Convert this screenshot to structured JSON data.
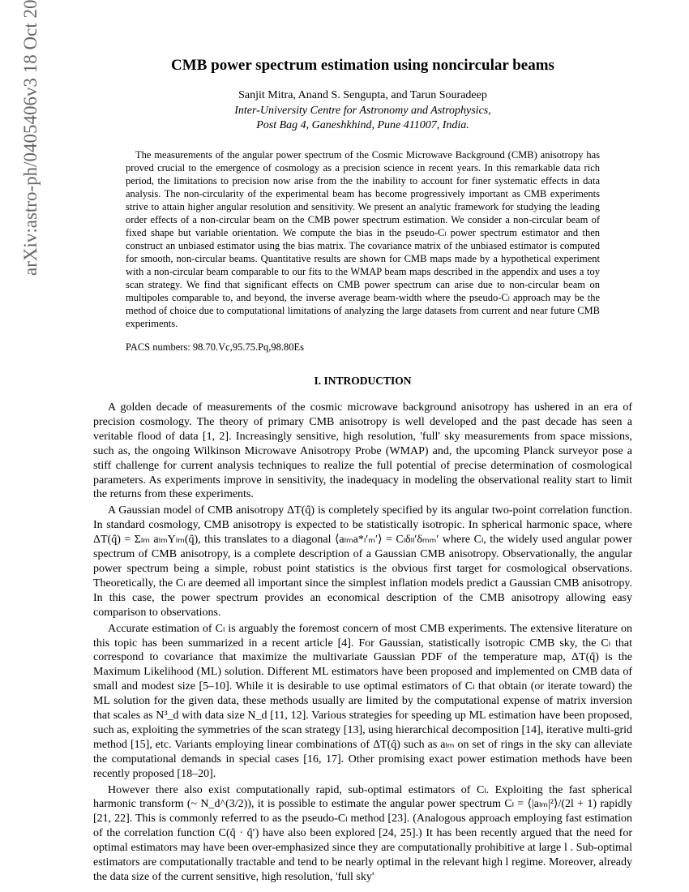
{
  "arxiv": {
    "identifier": "arXiv:astro-ph/0405406v3  18 Oct 2006"
  },
  "title": "CMB power spectrum estimation using noncircular beams",
  "authors": "Sanjit Mitra, Anand S. Sengupta, and Tarun Souradeep",
  "affiliation_line1": "Inter-University Centre for Astronomy and Astrophysics,",
  "affiliation_line2": "Post Bag 4, Ganeshkhind, Pune 411007, India.",
  "abstract": "The measurements of the angular power spectrum of the Cosmic Microwave Background (CMB) anisotropy has proved crucial to the emergence of cosmology as a precision science in recent years. In this remarkable data rich period, the limitations to precision now arise from the the inability to account for finer systematic effects in data analysis. The non-circularity of the experimental beam has become progressively important as CMB experiments strive to attain higher angular resolution and sensitivity. We present an analytic framework for studying the leading order effects of a non-circular beam on the CMB power spectrum estimation. We consider a non-circular beam of fixed shape but variable orientation. We compute the bias in the pseudo-Cₗ power spectrum estimator and then construct an unbiased estimator using the bias matrix. The covariance matrix of the unbiased estimator is computed for smooth, non-circular beams. Quantitative results are shown for CMB maps made by a hypothetical experiment with a non-circular beam comparable to our fits to the WMAP beam maps described in the appendix and uses a toy scan strategy. We find that significant effects on CMB power spectrum can arise due to non-circular beam on multipoles comparable to, and beyond, the inverse average beam-width where the pseudo-Cₗ approach may be the method of choice due to computational limitations of analyzing the large datasets from current and near future CMB experiments.",
  "pacs": "PACS numbers: 98.70.Vc,95.75.Pq,98.80Es",
  "section_heading": "I.   INTRODUCTION",
  "para1": "A golden decade of measurements of the cosmic microwave background anisotropy has ushered in an era of precision cosmology. The theory of primary CMB anisotropy is well developed and the past decade has seen a veritable flood of data [1, 2]. Increasingly sensitive, high resolution, 'full' sky measurements from space missions, such as, the ongoing Wilkinson Microwave Anisotropy Probe (WMAP) and, the upcoming Planck surveyor pose a stiff challenge for current analysis techniques to realize the full potential of precise determination of cosmological parameters. As experiments improve in sensitivity, the inadequacy in modeling the observational reality start to limit the returns from these experiments.",
  "para2": "A Gaussian model of CMB anisotropy ΔT(q̂) is completely specified by its angular two-point correlation function. In standard cosmology, CMB anisotropy is expected to be statistically isotropic. In spherical harmonic space, where ΔT(q̂) = Σₗₘ aₗₘYₗₘ(q̂), this translates to a diagonal ⟨aₗₘa*ₗ′ₘ′⟩ = Cₗδₗₗ′δₘₘ′ where Cₗ, the widely used angular power spectrum of CMB anisotropy, is a complete description of a Gaussian CMB anisotropy. Observationally, the angular power spectrum being a simple, robust point statistics is the obvious first target for cosmological observations. Theoretically, the Cₗ are deemed all important since the simplest inflation models predict a Gaussian CMB anisotropy. In this case, the power spectrum provides an economical description of the CMB anisotropy allowing easy comparison to observations.",
  "para3": "Accurate estimation of Cₗ is arguably the foremost concern of most CMB experiments. The extensive literature on this topic has been summarized in a recent article [4]. For Gaussian, statistically isotropic CMB sky, the Cₗ that correspond to covariance that maximize the multivariate Gaussian PDF of the temperature map, ΔT(q̂) is the Maximum Likelihood (ML) solution. Different ML estimators have been proposed and implemented on CMB data of small and modest size [5–10]. While it is desirable to use optimal estimators of Cₗ that obtain (or iterate toward) the ML solution for the given data, these methods usually are limited by the computational expense of matrix inversion that scales as N³_d with data size N_d [11, 12]. Various strategies for speeding up ML estimation have been proposed, such as, exploiting the symmetries of the scan strategy [13], using hierarchical decomposition [14], iterative multi-grid method [15], etc. Variants employing linear combinations of ΔT(q̂) such as aₗₘ on set of rings in the sky can alleviate the computational demands in special cases [16, 17]. Other promising exact power estimation methods have been recently proposed [18–20].",
  "para4": "However there also exist computationally rapid, sub-optimal estimators of Cₗ. Exploiting the fast spherical harmonic transform (~ N_d^(3/2)), it is possible to estimate the angular power spectrum Cₗ = ⟨|aₗₘ|²⟩/(2l + 1) rapidly [21, 22]. This is commonly referred to as the pseudo-Cₗ method [23]. (Analogous approach employing fast estimation of the correlation function C(q̂ · q̂′) have also been explored [24, 25].) It has been recently argued that the need for optimal estimators may have been over-emphasized since they are computationally prohibitive at large l . Sub-optimal estimators are computationally tractable and tend to be nearly optimal in the relevant high l regime. Moreover, already the data size of the current sensitive, high resolution, 'full sky'"
}
